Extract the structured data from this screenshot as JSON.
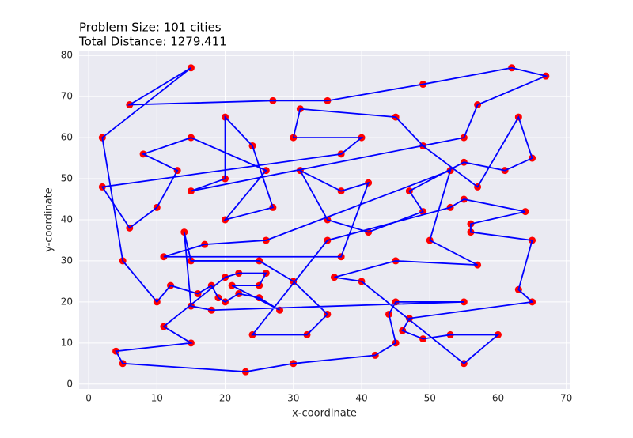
{
  "chart_data": {
    "type": "line",
    "title": "Problem Size: 101 cities",
    "subtitle": "Total Distance: 1279.411",
    "xlabel": "x-coordinate",
    "ylabel": "y-coordinate",
    "x": [
      6,
      15,
      2,
      5,
      10,
      12,
      16,
      18,
      19,
      20,
      22,
      25,
      28,
      21,
      25,
      26,
      22,
      20,
      11,
      15,
      4,
      5,
      23,
      30,
      42,
      45,
      44,
      45,
      55,
      18,
      15,
      14,
      15,
      25,
      30,
      35,
      32,
      24,
      35,
      53,
      55,
      64,
      56,
      56,
      65,
      63,
      65,
      47,
      46,
      49,
      53,
      60,
      55,
      40,
      36,
      45,
      57,
      50,
      53,
      26,
      17,
      11,
      37,
      41,
      37,
      31,
      35,
      41,
      49,
      47,
      55,
      61,
      65,
      63,
      57,
      49,
      45,
      31,
      30,
      40,
      37,
      2,
      6,
      10,
      13,
      8,
      15,
      26,
      20,
      27,
      24,
      20,
      20,
      15,
      55,
      57,
      67,
      62,
      49,
      35,
      27
    ],
    "series": [
      {
        "color": "#0000ff",
        "marker_color": "#ff0000",
        "values": [
          68,
          77,
          60,
          30,
          20,
          24,
          22,
          24,
          21,
          20,
          22,
          21,
          18,
          24,
          24,
          27,
          27,
          26,
          14,
          10,
          8,
          5,
          3,
          5,
          7,
          10,
          17,
          20,
          20,
          18,
          19,
          37,
          30,
          30,
          25,
          17,
          12,
          12,
          35,
          43,
          45,
          42,
          39,
          37,
          35,
          23,
          20,
          16,
          13,
          11,
          12,
          12,
          5,
          25,
          26,
          30,
          29,
          35,
          52,
          35,
          34,
          31,
          31,
          49,
          47,
          52,
          40,
          37,
          42,
          47,
          54,
          52,
          55,
          65,
          48,
          58,
          65,
          67,
          60,
          60,
          56,
          48,
          38,
          43,
          52,
          56,
          60,
          52,
          40,
          43,
          58,
          65,
          50,
          47,
          60,
          68,
          75,
          77,
          73,
          69,
          69
        ]
      }
    ],
    "closed": true,
    "xlim": [
      -1.4,
      70.5
    ],
    "ylim": [
      -1.2,
      81
    ],
    "xticks": [
      0,
      10,
      20,
      30,
      40,
      50,
      60,
      70
    ],
    "yticks": [
      0,
      10,
      20,
      30,
      40,
      50,
      60,
      70,
      80
    ],
    "grid": true
  }
}
